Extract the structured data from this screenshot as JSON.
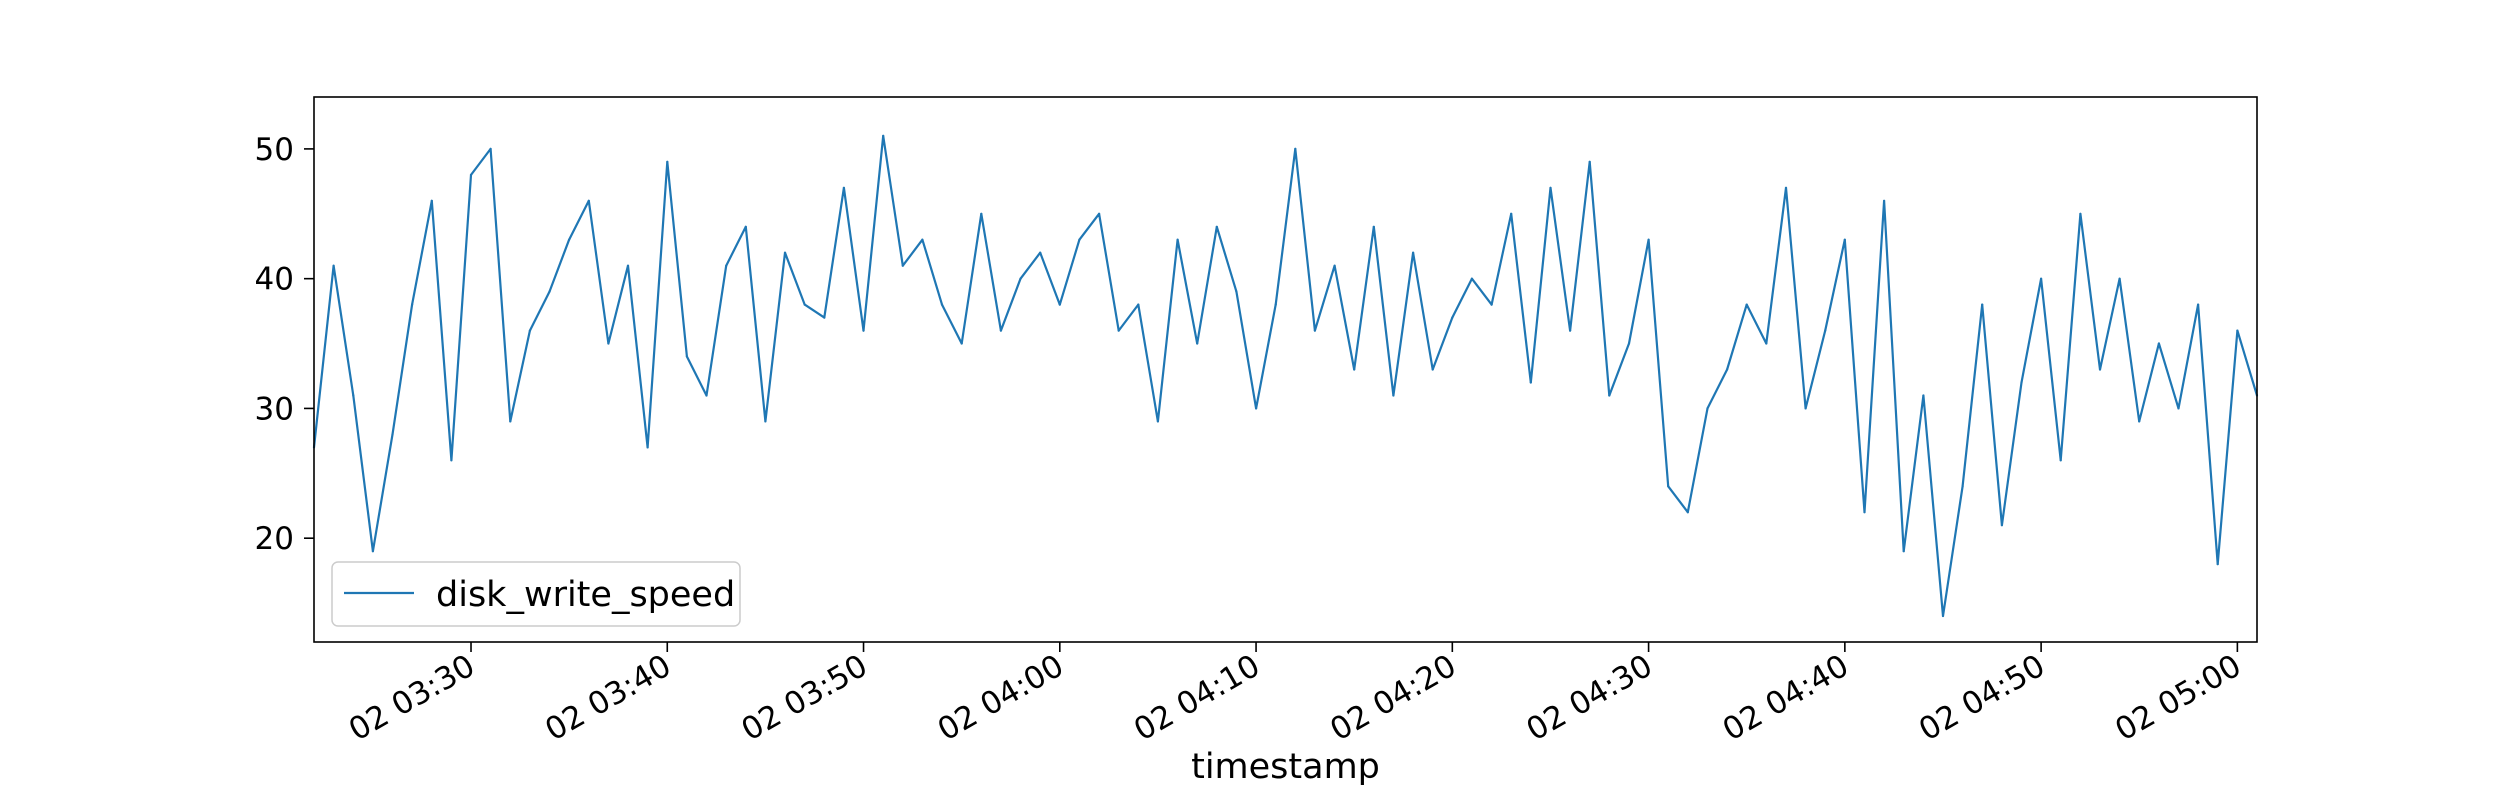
{
  "chart_data": {
    "type": "line",
    "title": "",
    "xlabel": "timestamp",
    "ylabel": "",
    "grid": false,
    "legend_position": "lower-left",
    "line_color": "#1f77b4",
    "x_range": [
      "2024-01-02T03:22:00",
      "2024-01-02T05:01:00"
    ],
    "ylim": [
      12.0,
      54.0
    ],
    "yticks": [
      20,
      30,
      40,
      50
    ],
    "ytick_labels": [
      "20",
      "30",
      "40",
      "50"
    ],
    "xticks": [
      "2024-01-02T03:30:00",
      "2024-01-02T03:40:00",
      "2024-01-02T03:50:00",
      "2024-01-02T04:00:00",
      "2024-01-02T04:10:00",
      "2024-01-02T04:20:00",
      "2024-01-02T04:30:00",
      "2024-01-02T04:40:00",
      "2024-01-02T04:50:00",
      "2024-01-02T05:00:00"
    ],
    "xtick_labels": [
      "02 03:30",
      "02 03:40",
      "02 03:50",
      "02 04:00",
      "02 04:10",
      "02 04:20",
      "02 04:30",
      "02 04:40",
      "02 04:50",
      "02 05:00"
    ],
    "series": [
      {
        "name": "disk_write_speed",
        "x": [
          "2024-01-02T03:22:00",
          "2024-01-02T03:23:00",
          "2024-01-02T03:24:00",
          "2024-01-02T03:25:00",
          "2024-01-02T03:26:00",
          "2024-01-02T03:27:00",
          "2024-01-02T03:28:00",
          "2024-01-02T03:29:00",
          "2024-01-02T03:30:00",
          "2024-01-02T03:31:00",
          "2024-01-02T03:32:00",
          "2024-01-02T03:33:00",
          "2024-01-02T03:34:00",
          "2024-01-02T03:35:00",
          "2024-01-02T03:36:00",
          "2024-01-02T03:37:00",
          "2024-01-02T03:38:00",
          "2024-01-02T03:39:00",
          "2024-01-02T03:40:00",
          "2024-01-02T03:41:00",
          "2024-01-02T03:42:00",
          "2024-01-02T03:43:00",
          "2024-01-02T03:44:00",
          "2024-01-02T03:45:00",
          "2024-01-02T03:46:00",
          "2024-01-02T03:47:00",
          "2024-01-02T03:48:00",
          "2024-01-02T03:49:00",
          "2024-01-02T03:50:00",
          "2024-01-02T03:51:00",
          "2024-01-02T03:52:00",
          "2024-01-02T03:53:00",
          "2024-01-02T03:54:00",
          "2024-01-02T03:55:00",
          "2024-01-02T03:56:00",
          "2024-01-02T03:57:00",
          "2024-01-02T03:58:00",
          "2024-01-02T03:59:00",
          "2024-01-02T04:00:00",
          "2024-01-02T04:01:00",
          "2024-01-02T04:02:00",
          "2024-01-02T04:03:00",
          "2024-01-02T04:04:00",
          "2024-01-02T04:05:00",
          "2024-01-02T04:06:00",
          "2024-01-02T04:07:00",
          "2024-01-02T04:08:00",
          "2024-01-02T04:09:00",
          "2024-01-02T04:10:00",
          "2024-01-02T04:11:00",
          "2024-01-02T04:12:00",
          "2024-01-02T04:13:00",
          "2024-01-02T04:14:00",
          "2024-01-02T04:15:00",
          "2024-01-02T04:16:00",
          "2024-01-02T04:17:00",
          "2024-01-02T04:18:00",
          "2024-01-02T04:19:00",
          "2024-01-02T04:20:00",
          "2024-01-02T04:21:00",
          "2024-01-02T04:22:00",
          "2024-01-02T04:23:00",
          "2024-01-02T04:24:00",
          "2024-01-02T04:25:00",
          "2024-01-02T04:26:00",
          "2024-01-02T04:27:00",
          "2024-01-02T04:28:00",
          "2024-01-02T04:29:00",
          "2024-01-02T04:30:00",
          "2024-01-02T04:31:00",
          "2024-01-02T04:32:00",
          "2024-01-02T04:33:00",
          "2024-01-02T04:34:00",
          "2024-01-02T04:35:00",
          "2024-01-02T04:36:00",
          "2024-01-02T04:37:00",
          "2024-01-02T04:38:00",
          "2024-01-02T04:39:00",
          "2024-01-02T04:40:00",
          "2024-01-02T04:41:00",
          "2024-01-02T04:42:00",
          "2024-01-02T04:43:00",
          "2024-01-02T04:44:00",
          "2024-01-02T04:45:00",
          "2024-01-02T04:46:00",
          "2024-01-02T04:47:00",
          "2024-01-02T04:48:00",
          "2024-01-02T04:49:00",
          "2024-01-02T04:50:00",
          "2024-01-02T04:51:00",
          "2024-01-02T04:52:00",
          "2024-01-02T04:53:00",
          "2024-01-02T04:54:00",
          "2024-01-02T04:55:00",
          "2024-01-02T04:56:00",
          "2024-01-02T04:57:00",
          "2024-01-02T04:58:00",
          "2024-01-02T04:59:00",
          "2024-01-02T05:00:00",
          "2024-01-02T05:01:00"
        ],
        "values": [
          27,
          41,
          31,
          19,
          28,
          38,
          46,
          26,
          48,
          50,
          29,
          36,
          39,
          43,
          46,
          35,
          41,
          27,
          49,
          34,
          31,
          41,
          44,
          29,
          42,
          38,
          37,
          47,
          36,
          51,
          41,
          43,
          38,
          35,
          45,
          36,
          40,
          42,
          38,
          43,
          45,
          36,
          38,
          29,
          43,
          35,
          44,
          39,
          30,
          38,
          50,
          36,
          41,
          33,
          44,
          31,
          42,
          33,
          37,
          40,
          38,
          45,
          32,
          47,
          36,
          49,
          31,
          35,
          43,
          24,
          22,
          30,
          33,
          38,
          35,
          47,
          30,
          36,
          43,
          22,
          46,
          19,
          31,
          14,
          24,
          38,
          21,
          32,
          40,
          26,
          45,
          33,
          40,
          29,
          35,
          30,
          38,
          18,
          36,
          31
        ],
        "color": "#1f77b4"
      }
    ]
  }
}
